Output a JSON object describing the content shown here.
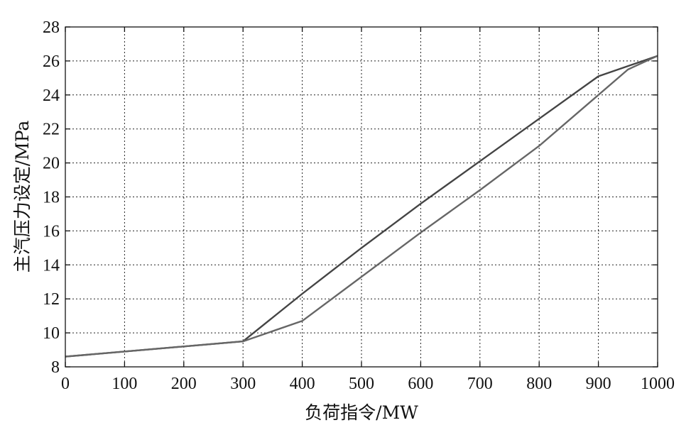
{
  "chart_data": {
    "type": "line",
    "title": "",
    "xlabel": "负荷指令/MW",
    "ylabel": "主汽压力设定/MPa",
    "xlim": [
      0,
      1000
    ],
    "ylim": [
      8,
      28
    ],
    "xticks": [
      0,
      100,
      200,
      300,
      400,
      500,
      600,
      700,
      800,
      900,
      1000
    ],
    "yticks": [
      8,
      10,
      12,
      14,
      16,
      18,
      20,
      22,
      24,
      26,
      28
    ],
    "grid": true,
    "legend": "none",
    "series": [
      {
        "color": "#444444",
        "x": [
          0,
          300,
          400,
          500,
          600,
          700,
          800,
          900,
          1000
        ],
        "y": [
          8.6,
          9.5,
          12.3,
          15.0,
          17.6,
          20.1,
          22.6,
          25.1,
          26.3
        ]
      },
      {
        "color": "#666666",
        "x": [
          0,
          300,
          400,
          500,
          600,
          700,
          800,
          900,
          950,
          1000
        ],
        "y": [
          8.6,
          9.5,
          10.7,
          13.3,
          15.9,
          18.4,
          21.0,
          24.0,
          25.5,
          26.3
        ]
      }
    ]
  }
}
